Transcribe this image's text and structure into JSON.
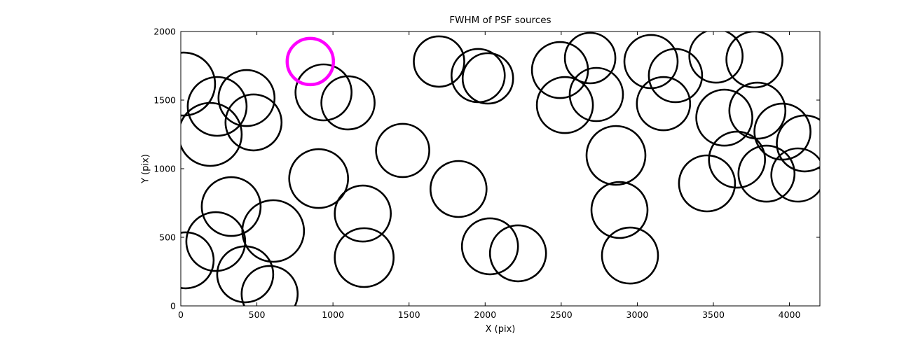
{
  "figure": {
    "title": "FWHM of PSF sources",
    "xlabel": "X (pix)",
    "ylabel": "Y (pix)"
  },
  "colors": {
    "background": "#ffffff",
    "axis": "#000000",
    "source_stroke": "#000000",
    "highlight_stroke": "#ff00ff"
  },
  "chart_data": {
    "type": "scatter",
    "title": "FWHM of PSF sources",
    "xlabel": "X (pix)",
    "ylabel": "Y (pix)",
    "xlim": [
      0,
      4200
    ],
    "ylim": [
      0,
      2000
    ],
    "x_ticks": [
      0,
      500,
      1000,
      1500,
      2000,
      2500,
      3000,
      3500,
      4000
    ],
    "y_ticks": [
      0,
      500,
      1000,
      1500,
      2000
    ],
    "grid": false,
    "legend": "none",
    "marker": "open-circle",
    "note": "Each point is [x_pix, y_pix, marker_radius_px]; open circles mark PSF sources, one source highlighted in magenta",
    "series": [
      {
        "name": "psf_sources",
        "color": "#000000",
        "stroke_width": 2.6,
        "points": [
          [
            18,
            1617,
            45
          ],
          [
            239,
            1454,
            42
          ],
          [
            432,
            1515,
            40
          ],
          [
            193,
            1250,
            45
          ],
          [
            478,
            1337,
            40
          ],
          [
            938,
            1556,
            40
          ],
          [
            1099,
            1480,
            38
          ],
          [
            1697,
            1781,
            36
          ],
          [
            1954,
            1679,
            38
          ],
          [
            2018,
            1658,
            36
          ],
          [
            2492,
            1719,
            40
          ],
          [
            2690,
            1806,
            36
          ],
          [
            2524,
            1464,
            40
          ],
          [
            2731,
            1541,
            38
          ],
          [
            3090,
            1781,
            38
          ],
          [
            3251,
            1679,
            38
          ],
          [
            3517,
            1821,
            38
          ],
          [
            3770,
            1796,
            40
          ],
          [
            3172,
            1474,
            38
          ],
          [
            3572,
            1372,
            40
          ],
          [
            3789,
            1423,
            40
          ],
          [
            3954,
            1270,
            40
          ],
          [
            4101,
            1184,
            40
          ],
          [
            3655,
            1066,
            40
          ],
          [
            3458,
            893,
            40
          ],
          [
            3849,
            964,
            40
          ],
          [
            4056,
            954,
            38
          ],
          [
            1458,
            1133,
            38
          ],
          [
            906,
            928,
            42
          ],
          [
            1825,
            852,
            40
          ],
          [
            1196,
            673,
            40
          ],
          [
            1205,
            352,
            42
          ],
          [
            2032,
            434,
            40
          ],
          [
            2216,
            383,
            40
          ],
          [
            331,
            724,
            42
          ],
          [
            230,
            469,
            42
          ],
          [
            607,
            546,
            44
          ],
          [
            32,
            332,
            40
          ],
          [
            423,
            230,
            40
          ],
          [
            584,
            87,
            40
          ],
          [
            2860,
            1097,
            42
          ],
          [
            2883,
            699,
            40
          ],
          [
            2952,
            367,
            40
          ]
        ]
      },
      {
        "name": "highlighted_source",
        "color": "#ff00ff",
        "stroke_width": 4.5,
        "points": [
          [
            851,
            1781,
            33
          ]
        ]
      }
    ]
  }
}
